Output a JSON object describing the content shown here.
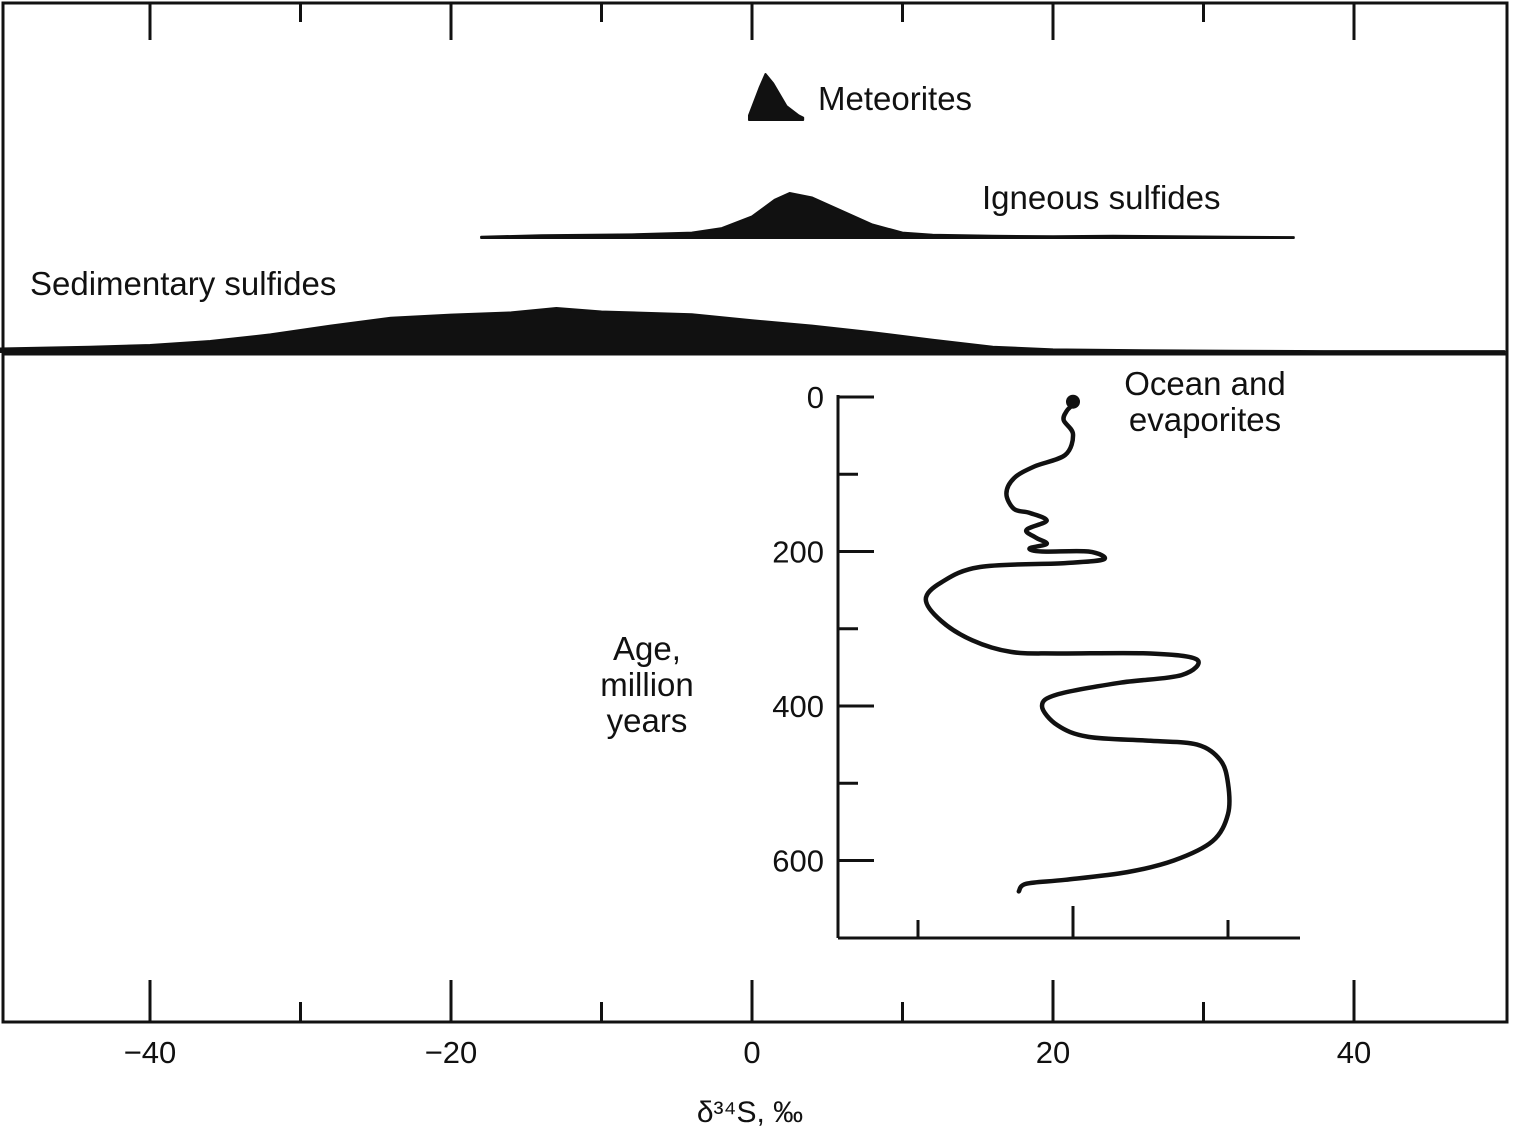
{
  "chart_data": [
    {
      "type": "area",
      "panel": "top",
      "xlim": [
        -50,
        50
      ],
      "series": [
        {
          "name": "Meteorites",
          "x": [
            -0.2,
            0.5,
            0.9,
            1.4,
            2.3,
            3.1,
            3.4
          ],
          "y": [
            0.1,
            0.7,
            1.0,
            0.8,
            0.3,
            0.1,
            0.05
          ]
        },
        {
          "name": "Igneous sulfides",
          "x": [
            -18,
            -14,
            -8,
            -4,
            -2,
            0,
            1.5,
            2.5,
            4,
            6,
            8,
            10,
            12,
            16,
            20,
            24,
            28,
            32,
            36
          ],
          "y": [
            0.03,
            0.06,
            0.08,
            0.12,
            0.22,
            0.48,
            0.85,
            1.0,
            0.9,
            0.6,
            0.3,
            0.12,
            0.07,
            0.05,
            0.04,
            0.05,
            0.04,
            0.03,
            0.02
          ]
        },
        {
          "name": "Sedimentary sulfides",
          "x": [
            -50,
            -44,
            -40,
            -36,
            -32,
            -28,
            -24,
            -20,
            -16,
            -13,
            -10,
            -4,
            0,
            4,
            8,
            12,
            16,
            20,
            26,
            32,
            38,
            44,
            50
          ],
          "y": [
            0.08,
            0.12,
            0.16,
            0.25,
            0.4,
            0.6,
            0.78,
            0.85,
            0.9,
            1.0,
            0.92,
            0.86,
            0.72,
            0.6,
            0.45,
            0.28,
            0.12,
            0.06,
            0.04,
            0.03,
            0.02,
            0.02,
            0.02
          ]
        }
      ],
      "xlabel": "δ³⁴S, ‰",
      "xticks": [
        -40,
        -20,
        0,
        20,
        40
      ]
    },
    {
      "type": "line",
      "panel": "inset",
      "series": [
        {
          "name": "Ocean and evaporites",
          "x": [
            21,
            20.6,
            20.4,
            21.0,
            20.5,
            18.5,
            17.2,
            16.7,
            17.2,
            18.2,
            19.3,
            18.0,
            18.6,
            19.3,
            18.2,
            19.0,
            22.0,
            23.0,
            20.5,
            15.0,
            12.5,
            11.5,
            12.5,
            14.5,
            17.0,
            20.0,
            26.0,
            29.0,
            28.0,
            24.0,
            20.0,
            19.0,
            20.0,
            22.0,
            26.0,
            29.0,
            30.5,
            31.0,
            31.0,
            30.0,
            27.5,
            24.5,
            20.5,
            18.0,
            17.5
          ],
          "y": [
            10,
            18,
            30,
            48,
            75,
            90,
            105,
            125,
            145,
            150,
            160,
            172,
            182,
            190,
            196,
            200,
            200,
            210,
            215,
            220,
            240,
            262,
            290,
            315,
            330,
            332,
            332,
            340,
            360,
            370,
            385,
            400,
            425,
            440,
            445,
            450,
            470,
            500,
            540,
            575,
            600,
            615,
            625,
            630,
            640
          ]
        }
      ],
      "ylabel": "Age, million years",
      "yticks": [
        0,
        200,
        400,
        600
      ],
      "ylim": [
        0,
        700
      ],
      "xlim": [
        5.8,
        36.5
      ],
      "xticks": [
        11,
        21,
        31
      ]
    }
  ],
  "labels": {
    "meteorites": "Meteorites",
    "igneous": "Igneous sulfides",
    "sedimentary": "Sedimentary sulfides",
    "ocean_line1": "Ocean and",
    "ocean_line2": "evaporites",
    "age_line1": "Age,",
    "age_line2": "million",
    "age_line3": "years",
    "xaxis": "δ³⁴S, ‰"
  }
}
